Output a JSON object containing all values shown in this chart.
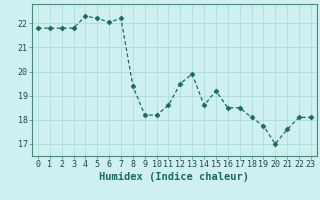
{
  "x": [
    0,
    1,
    2,
    3,
    4,
    5,
    6,
    7,
    8,
    9,
    10,
    11,
    12,
    13,
    14,
    15,
    16,
    17,
    18,
    19,
    20,
    21,
    22,
    23
  ],
  "y": [
    21.8,
    21.8,
    21.8,
    21.8,
    22.3,
    22.2,
    22.05,
    22.2,
    19.4,
    18.2,
    18.2,
    18.6,
    19.5,
    19.9,
    18.6,
    19.2,
    18.5,
    18.5,
    18.1,
    17.75,
    17.0,
    17.6,
    18.1,
    18.1
  ],
  "line_color": "#1a6b5a",
  "marker": "D",
  "marker_size": 2.5,
  "bg_color": "#cff0f0",
  "grid_color": "#a8d8d8",
  "xlabel": "Humidex (Indice chaleur)",
  "xlim": [
    -0.5,
    23.5
  ],
  "ylim": [
    16.5,
    22.8
  ],
  "yticks": [
    17,
    18,
    19,
    20,
    21,
    22
  ],
  "xticks": [
    0,
    1,
    2,
    3,
    4,
    5,
    6,
    7,
    8,
    9,
    10,
    11,
    12,
    13,
    14,
    15,
    16,
    17,
    18,
    19,
    20,
    21,
    22,
    23
  ],
  "tick_fontsize": 6,
  "xlabel_fontsize": 7.5
}
